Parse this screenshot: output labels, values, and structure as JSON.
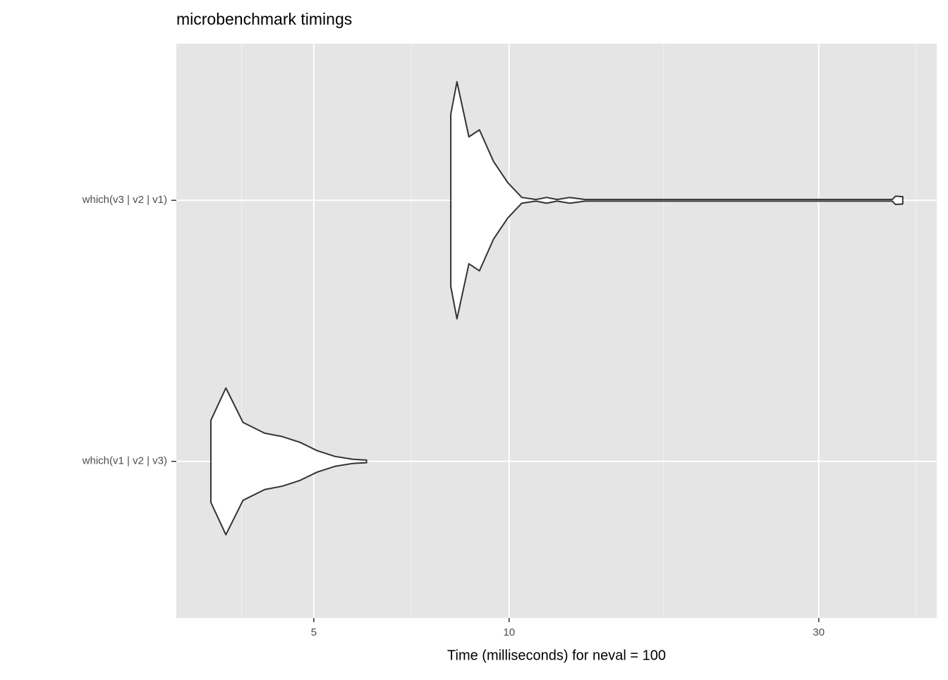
{
  "chart_data": {
    "type": "violin",
    "title": "microbenchmark timings",
    "x_label": "Time (milliseconds) for neval = 100",
    "categories": [
      "which(v1 | v2 | v3)",
      "which(v3 | v2 | v1)"
    ],
    "series": [
      {
        "name": "which(v1 | v2 | v3)",
        "color": "#ffffff",
        "x": [
          3.47,
          3.66,
          3.89,
          4.2,
          4.47,
          4.76,
          5.06,
          5.39,
          5.74,
          6.03
        ],
        "density": [
          0.157,
          0.281,
          0.149,
          0.108,
          0.095,
          0.073,
          0.041,
          0.019,
          0.008,
          0.005
        ]
      },
      {
        "name": "which(v3 | v2 | v1)",
        "color": "#ffffff",
        "x": [
          8.13,
          8.31,
          8.67,
          9.0,
          9.46,
          9.95,
          10.46,
          11.0,
          11.42,
          11.86,
          12.4,
          13.1,
          20.05,
          38.93,
          39.41,
          40.42
        ],
        "density": [
          0.33,
          0.454,
          0.243,
          0.27,
          0.149,
          0.068,
          0.011,
          0.003,
          0.011,
          0.003,
          0.011,
          0.003,
          0.003,
          0.003,
          0.016,
          0.014
        ]
      }
    ],
    "xscale": "log",
    "xlim": [
      3.07,
      45.6
    ],
    "xticks": [
      5,
      10,
      30
    ],
    "xminorticks": [
      3.87,
      7.07,
      17.3,
      42.3
    ],
    "ylim": [
      0.4,
      2.6
    ],
    "grid": true
  }
}
